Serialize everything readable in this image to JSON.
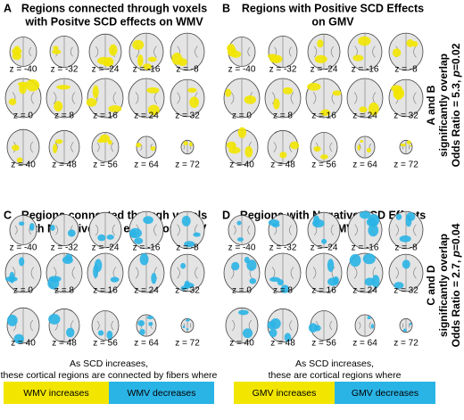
{
  "panels": [
    {
      "letter": "A",
      "title": [
        "Regions connected through voxels",
        "with Positve SCD effects on WMV"
      ],
      "color": "#f2e600",
      "slices": [
        "z = -40",
        "z = -32",
        "z = -24",
        "z = -16",
        "z = -8",
        "z = 0",
        "z = 8",
        "z = 16",
        "z = 24",
        "z = 32",
        "z = 40",
        "z = 48",
        "z = 56",
        "z = 64",
        "z = 72"
      ]
    },
    {
      "letter": "B",
      "title": [
        "Regions with Positive SCD Effects",
        "on GMV"
      ],
      "color": "#f2e600",
      "slices": [
        "z = -40",
        "z = -32",
        "z = -24",
        "z = -16",
        "z = -8",
        "z = 0",
        "z = 8",
        "z = 16",
        "z = 24",
        "z = 32",
        "z = 40",
        "z = 48",
        "z = 56",
        "z = 64",
        "z = 72"
      ]
    },
    {
      "letter": "C",
      "title": [
        "Regions connected through voxels",
        "with Negative SCD effects on WMV"
      ],
      "color": "#2ab4e6",
      "slices": [
        "z = -40",
        "z = -32",
        "z = -24",
        "z = -16",
        "z = -8",
        "z = 0",
        "z = 8",
        "z = 16",
        "z = 24",
        "z = 32",
        "z = 40",
        "z = 48",
        "z = 56",
        "z = 64",
        "z = 72"
      ]
    },
    {
      "letter": "D",
      "title": [
        "Regions with Negative SCD Effects",
        "on GMV"
      ],
      "color": "#2ab4e6",
      "slices": [
        "z = -40",
        "z = -32",
        "z = -24",
        "z = -16",
        "z = -8",
        "z = 0",
        "z = 8",
        "z = 16",
        "z = 24",
        "z = 32",
        "z = 40",
        "z = 48",
        "z = 56",
        "z = 64",
        "z = 72"
      ]
    }
  ],
  "side_notes": [
    {
      "lines": [
        "A and B",
        "significantly overlap"
      ],
      "stat": [
        "Odds Ratio = 5.3, ",
        "p",
        "=0.02"
      ]
    },
    {
      "lines": [
        "C and D",
        "significantly overlap"
      ],
      "stat": [
        "Odds Ratio = 2.7, ",
        "p",
        "=0.04"
      ]
    }
  ],
  "legends": [
    {
      "caption": [
        "As SCD increases,",
        "these cortical regions are connected by fibers where"
      ],
      "items": [
        {
          "label": "WMV increases",
          "color": "#f2e600"
        },
        {
          "label": "WMV decreases",
          "color": "#2ab4e6"
        }
      ]
    },
    {
      "caption": [
        "As SCD increases,",
        "these are cortical regions where"
      ],
      "items": [
        {
          "label": "GMV increases",
          "color": "#f2e600"
        },
        {
          "label": "GMV decreases",
          "color": "#2ab4e6"
        }
      ]
    }
  ]
}
